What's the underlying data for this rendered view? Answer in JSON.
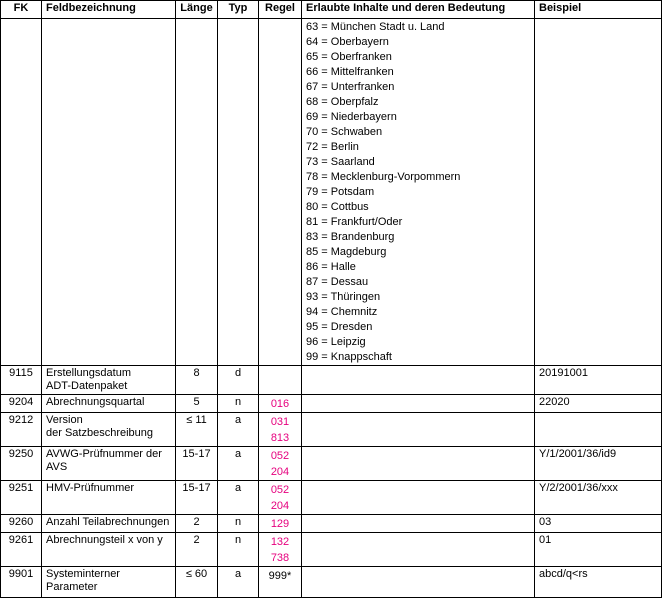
{
  "header": {
    "fk": "FK",
    "feld": "Feldbezeichnung",
    "laenge": "Länge",
    "typ": "Typ",
    "regel": "Regel",
    "inhalte": "Erlaubte Inhalte und deren Bedeutung",
    "beispiel": "Beispiel"
  },
  "list_items": [
    "63 = München Stadt u. Land",
    "64 = Oberbayern",
    "65 = Oberfranken",
    "66 = Mittelfranken",
    "67 = Unterfranken",
    "68 = Oberpfalz",
    "69 = Niederbayern",
    "70 = Schwaben",
    "72 = Berlin",
    "73 = Saarland",
    "78 = Mecklenburg-Vorpommern",
    "79 = Potsdam",
    "80 = Cottbus",
    "81 = Frankfurt/Oder",
    "83 = Brandenburg",
    "85 = Magdeburg",
    "86 = Halle",
    "87 = Dessau",
    "93 = Thüringen",
    "94 = Chemnitz",
    "95 = Dresden",
    "96 = Leipzig",
    "99 = Knappschaft"
  ],
  "rows": [
    {
      "fk": "9115",
      "feld": [
        "Erstellungsdatum",
        "ADT-Datenpaket"
      ],
      "laenge": "8",
      "typ": "d",
      "regel": [],
      "beispiel": "20191001"
    },
    {
      "fk": "9204",
      "feld": [
        "Abrechnungsquartal"
      ],
      "laenge": "5",
      "typ": "n",
      "regel": [
        "016"
      ],
      "beispiel": "22020"
    },
    {
      "fk": "9212",
      "feld": [
        "Version",
        "der Satzbeschreibung"
      ],
      "laenge": "≤ 11",
      "typ": "a",
      "regel": [
        "031",
        "813"
      ],
      "beispiel": ""
    },
    {
      "fk": "9250",
      "feld": [
        "AVWG-Prüfnummer der",
        "AVS"
      ],
      "laenge": "15-17",
      "typ": "a",
      "regel": [
        "052",
        "204"
      ],
      "beispiel": "Y/1/2001/36/id9"
    },
    {
      "fk": "9251",
      "feld": [
        "HMV-Prüfnummer"
      ],
      "laenge": "15-17",
      "typ": "a",
      "regel": [
        "052",
        "204"
      ],
      "beispiel": "Y/2/2001/36/xxx"
    },
    {
      "fk": "9260",
      "feld": [
        "Anzahl Teilabrechnungen"
      ],
      "laenge": "2",
      "typ": "n",
      "regel": [
        "129"
      ],
      "beispiel": "03"
    },
    {
      "fk": "9261",
      "feld": [
        "Abrechnungsteil x von y"
      ],
      "laenge": "2",
      "typ": "n",
      "regel": [
        "132",
        "738"
      ],
      "beispiel": "01"
    },
    {
      "fk": "9901",
      "feld": [
        "Systeminterner",
        "Parameter"
      ],
      "laenge": "≤ 60",
      "typ": "a",
      "regel": [
        "999*"
      ],
      "beispiel": "abcd/q<rs"
    }
  ],
  "colors": {
    "regel": "#e6007e"
  }
}
